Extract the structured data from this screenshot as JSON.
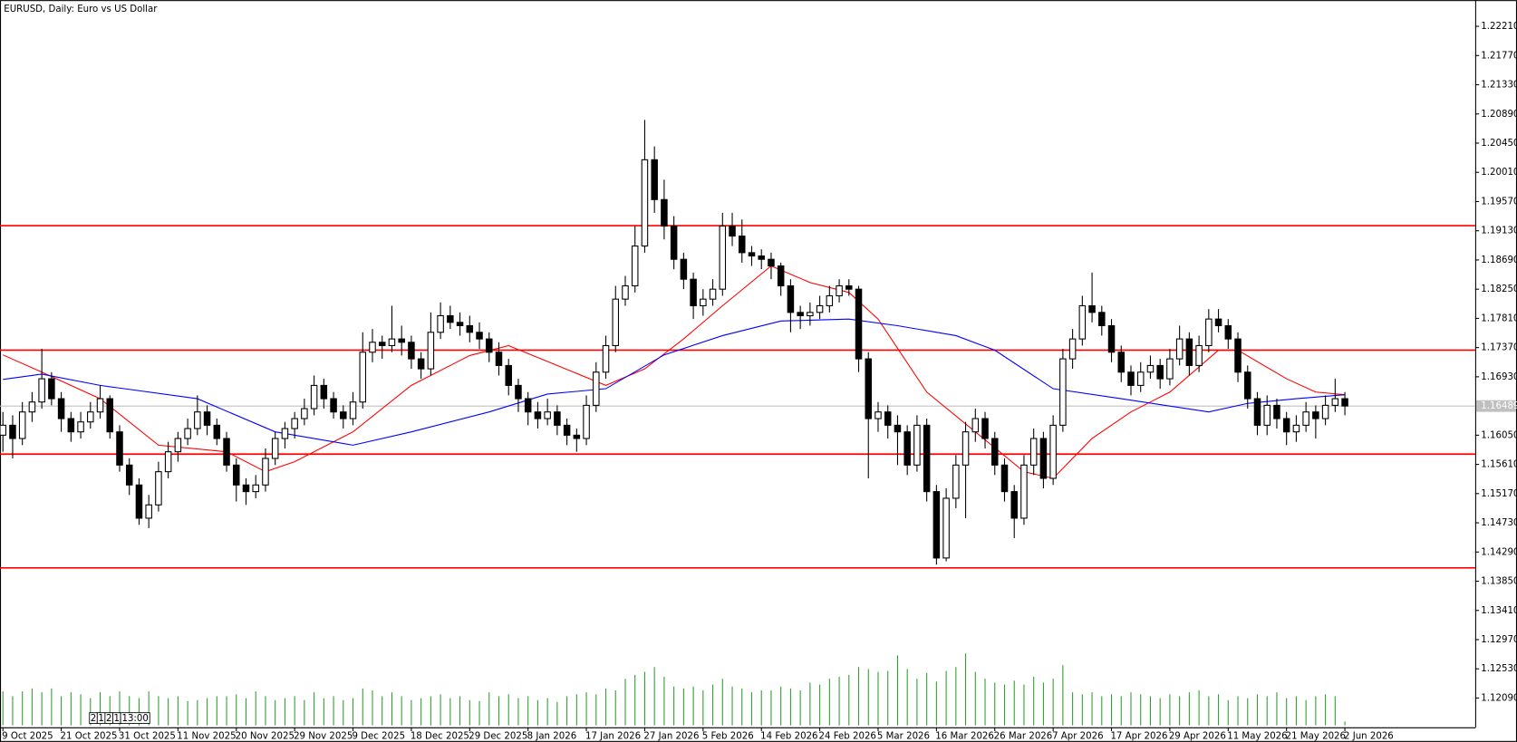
{
  "chart_data": {
    "type": "candlestick",
    "title": "EURUSD, Daily:  Euro vs US Dollar",
    "ohlc": [
      [
        1.1605,
        1.164,
        1.158,
        1.162
      ],
      [
        1.162,
        1.1635,
        1.157,
        1.16
      ],
      [
        1.16,
        1.1655,
        1.159,
        1.164
      ],
      [
        1.164,
        1.167,
        1.1625,
        1.1655
      ],
      [
        1.1655,
        1.1735,
        1.1645,
        1.169
      ],
      [
        1.169,
        1.17,
        1.165,
        1.166
      ],
      [
        1.166,
        1.167,
        1.161,
        1.163
      ],
      [
        1.163,
        1.164,
        1.1595,
        1.161
      ],
      [
        1.161,
        1.164,
        1.16,
        1.1625
      ],
      [
        1.1625,
        1.1655,
        1.1615,
        1.164
      ],
      [
        1.164,
        1.168,
        1.163,
        1.166
      ],
      [
        1.166,
        1.1665,
        1.16,
        1.161
      ],
      [
        1.161,
        1.162,
        1.155,
        1.156
      ],
      [
        1.156,
        1.157,
        1.1515,
        1.153
      ],
      [
        1.153,
        1.154,
        1.147,
        1.148
      ],
      [
        1.148,
        1.1515,
        1.1465,
        1.15
      ],
      [
        1.15,
        1.1565,
        1.149,
        1.155
      ],
      [
        1.155,
        1.1595,
        1.154,
        1.158
      ],
      [
        1.158,
        1.161,
        1.1565,
        1.16
      ],
      [
        1.16,
        1.163,
        1.159,
        1.1615
      ],
      [
        1.1615,
        1.1665,
        1.1605,
        1.164
      ],
      [
        1.164,
        1.165,
        1.1605,
        1.162
      ],
      [
        1.162,
        1.163,
        1.159,
        1.16
      ],
      [
        1.16,
        1.161,
        1.155,
        1.156
      ],
      [
        1.156,
        1.157,
        1.1505,
        1.153
      ],
      [
        1.153,
        1.154,
        1.15,
        1.152
      ],
      [
        1.152,
        1.1545,
        1.151,
        1.153
      ],
      [
        1.153,
        1.1585,
        1.152,
        1.157
      ],
      [
        1.157,
        1.161,
        1.156,
        1.16
      ],
      [
        1.16,
        1.1625,
        1.1585,
        1.1615
      ],
      [
        1.1615,
        1.164,
        1.16,
        1.163
      ],
      [
        1.163,
        1.166,
        1.162,
        1.1645
      ],
      [
        1.1645,
        1.1695,
        1.1635,
        1.168
      ],
      [
        1.168,
        1.169,
        1.1645,
        1.166
      ],
      [
        1.166,
        1.167,
        1.163,
        1.164
      ],
      [
        1.164,
        1.165,
        1.1615,
        1.163
      ],
      [
        1.163,
        1.167,
        1.162,
        1.1655
      ],
      [
        1.1655,
        1.176,
        1.1645,
        1.173
      ],
      [
        1.173,
        1.1765,
        1.1715,
        1.1745
      ],
      [
        1.1745,
        1.1755,
        1.172,
        1.174
      ],
      [
        1.174,
        1.18,
        1.173,
        1.175
      ],
      [
        1.175,
        1.177,
        1.1725,
        1.1745
      ],
      [
        1.1745,
        1.1755,
        1.1705,
        1.172
      ],
      [
        1.172,
        1.173,
        1.169,
        1.1705
      ],
      [
        1.1705,
        1.179,
        1.1695,
        1.176
      ],
      [
        1.176,
        1.1805,
        1.175,
        1.1785
      ],
      [
        1.1785,
        1.18,
        1.1765,
        1.1775
      ],
      [
        1.1775,
        1.179,
        1.1755,
        1.177
      ],
      [
        1.177,
        1.1785,
        1.1745,
        1.176
      ],
      [
        1.176,
        1.1775,
        1.1735,
        1.175
      ],
      [
        1.175,
        1.176,
        1.1715,
        1.173
      ],
      [
        1.173,
        1.1745,
        1.1695,
        1.171
      ],
      [
        1.171,
        1.172,
        1.1665,
        1.168
      ],
      [
        1.168,
        1.169,
        1.164,
        1.166
      ],
      [
        1.166,
        1.167,
        1.162,
        1.164
      ],
      [
        1.164,
        1.1655,
        1.1615,
        1.163
      ],
      [
        1.163,
        1.166,
        1.162,
        1.164
      ],
      [
        1.164,
        1.165,
        1.1605,
        1.162
      ],
      [
        1.162,
        1.163,
        1.159,
        1.1605
      ],
      [
        1.1605,
        1.1615,
        1.158,
        1.16
      ],
      [
        1.16,
        1.1665,
        1.159,
        1.165
      ],
      [
        1.165,
        1.1715,
        1.164,
        1.17
      ],
      [
        1.17,
        1.1755,
        1.169,
        1.174
      ],
      [
        1.174,
        1.183,
        1.173,
        1.181
      ],
      [
        1.181,
        1.1845,
        1.18,
        1.183
      ],
      [
        1.183,
        1.192,
        1.182,
        1.189
      ],
      [
        1.189,
        1.208,
        1.188,
        1.202
      ],
      [
        1.202,
        1.204,
        1.194,
        1.196
      ],
      [
        1.196,
        1.199,
        1.19,
        1.192
      ],
      [
        1.192,
        1.1935,
        1.1855,
        1.187
      ],
      [
        1.187,
        1.188,
        1.1825,
        1.184
      ],
      [
        1.184,
        1.185,
        1.178,
        1.18
      ],
      [
        1.18,
        1.1825,
        1.1785,
        1.181
      ],
      [
        1.181,
        1.184,
        1.18,
        1.1825
      ],
      [
        1.1825,
        1.194,
        1.1815,
        1.192
      ],
      [
        1.192,
        1.194,
        1.189,
        1.1905
      ],
      [
        1.1905,
        1.193,
        1.1865,
        1.188
      ],
      [
        1.188,
        1.189,
        1.186,
        1.1875
      ],
      [
        1.1875,
        1.1885,
        1.1855,
        1.187
      ],
      [
        1.187,
        1.188,
        1.184,
        1.186
      ],
      [
        1.186,
        1.1865,
        1.1815,
        1.183
      ],
      [
        1.183,
        1.184,
        1.176,
        1.179
      ],
      [
        1.179,
        1.18,
        1.1765,
        1.1785
      ],
      [
        1.1785,
        1.1805,
        1.177,
        1.179
      ],
      [
        1.179,
        1.1815,
        1.178,
        1.18
      ],
      [
        1.18,
        1.183,
        1.179,
        1.1815
      ],
      [
        1.1815,
        1.184,
        1.1805,
        1.183
      ],
      [
        1.183,
        1.184,
        1.1815,
        1.1825
      ],
      [
        1.1825,
        1.183,
        1.17,
        1.172
      ],
      [
        1.172,
        1.173,
        1.154,
        1.163
      ],
      [
        1.163,
        1.1655,
        1.161,
        1.164
      ],
      [
        1.164,
        1.165,
        1.16,
        1.162
      ],
      [
        1.162,
        1.1635,
        1.156,
        1.161
      ],
      [
        1.161,
        1.162,
        1.1545,
        1.156
      ],
      [
        1.156,
        1.1635,
        1.155,
        1.162
      ],
      [
        1.162,
        1.163,
        1.1505,
        1.152
      ],
      [
        1.152,
        1.153,
        1.141,
        1.142
      ],
      [
        1.142,
        1.1525,
        1.1415,
        1.151
      ],
      [
        1.151,
        1.1575,
        1.1495,
        1.156
      ],
      [
        1.156,
        1.1625,
        1.148,
        1.161
      ],
      [
        1.161,
        1.1645,
        1.1595,
        1.163
      ],
      [
        1.163,
        1.164,
        1.1585,
        1.16
      ],
      [
        1.16,
        1.161,
        1.1545,
        1.156
      ],
      [
        1.156,
        1.157,
        1.1505,
        1.152
      ],
      [
        1.152,
        1.153,
        1.145,
        1.148
      ],
      [
        1.148,
        1.1575,
        1.147,
        1.156
      ],
      [
        1.156,
        1.1615,
        1.1545,
        1.16
      ],
      [
        1.16,
        1.161,
        1.1525,
        1.154
      ],
      [
        1.154,
        1.1635,
        1.153,
        1.162
      ],
      [
        1.162,
        1.1735,
        1.161,
        1.172
      ],
      [
        1.172,
        1.1765,
        1.1705,
        1.175
      ],
      [
        1.175,
        1.1815,
        1.174,
        1.18
      ],
      [
        1.18,
        1.185,
        1.1775,
        1.179
      ],
      [
        1.179,
        1.18,
        1.1755,
        1.177
      ],
      [
        1.177,
        1.178,
        1.1715,
        1.173
      ],
      [
        1.173,
        1.174,
        1.1685,
        1.17
      ],
      [
        1.17,
        1.171,
        1.1665,
        1.168
      ],
      [
        1.168,
        1.1715,
        1.167,
        1.17
      ],
      [
        1.17,
        1.1725,
        1.169,
        1.171
      ],
      [
        1.171,
        1.172,
        1.1675,
        1.169
      ],
      [
        1.169,
        1.1735,
        1.168,
        1.172
      ],
      [
        1.172,
        1.177,
        1.171,
        1.175
      ],
      [
        1.175,
        1.176,
        1.1695,
        1.171
      ],
      [
        1.171,
        1.1755,
        1.17,
        1.174
      ],
      [
        1.174,
        1.1795,
        1.173,
        1.178
      ],
      [
        1.178,
        1.1795,
        1.176,
        1.177
      ],
      [
        1.177,
        1.178,
        1.1735,
        1.175
      ],
      [
        1.175,
        1.176,
        1.1685,
        1.17
      ],
      [
        1.17,
        1.171,
        1.1645,
        1.166
      ],
      [
        1.166,
        1.167,
        1.1605,
        1.162
      ],
      [
        1.162,
        1.1665,
        1.1605,
        1.165
      ],
      [
        1.165,
        1.166,
        1.1615,
        1.163
      ],
      [
        1.163,
        1.164,
        1.159,
        1.161
      ],
      [
        1.161,
        1.1635,
        1.1595,
        1.162
      ],
      [
        1.162,
        1.1655,
        1.161,
        1.164
      ],
      [
        1.164,
        1.165,
        1.16,
        1.163
      ],
      [
        1.163,
        1.1665,
        1.162,
        1.165
      ],
      [
        1.165,
        1.169,
        1.164,
        1.166
      ],
      [
        1.166,
        1.167,
        1.1635,
        1.1649
      ]
    ],
    "volume": [
      35,
      30,
      35,
      38,
      34,
      38,
      30,
      34,
      32,
      28,
      34,
      30,
      35,
      30,
      28,
      35,
      30,
      28,
      30,
      25,
      26,
      28,
      30,
      30,
      32,
      28,
      35,
      30,
      26,
      28,
      30,
      26,
      34,
      28,
      30,
      26,
      28,
      38,
      36,
      30,
      34,
      30,
      26,
      28,
      30,
      32,
      28,
      30,
      26,
      25,
      34,
      30,
      32,
      28,
      30,
      26,
      28,
      24,
      30,
      32,
      34,
      32,
      38,
      36,
      48,
      52,
      55,
      60,
      50,
      40,
      38,
      40,
      36,
      42,
      48,
      40,
      38,
      34,
      36,
      36,
      40,
      38,
      36,
      44,
      42,
      48,
      50,
      52,
      60,
      58,
      55,
      56,
      72,
      58,
      48,
      54,
      45,
      56,
      60,
      74,
      55,
      48,
      44,
      42,
      46,
      42,
      50,
      44,
      48,
      62,
      34,
      32,
      34,
      30,
      32,
      30,
      34,
      32,
      30,
      28,
      32,
      30,
      34,
      36,
      30,
      32,
      26,
      30,
      28,
      32,
      30,
      34,
      28,
      30,
      26,
      30,
      32,
      30,
      4
    ],
    "volume_color": "#2ca02c",
    "xlim": [
      -0.3,
      151.4
    ],
    "xticks": [
      {
        "value": 0,
        "label": "9 Oct 2025"
      },
      {
        "value": 6,
        "label": "21 Oct 2025"
      },
      {
        "value": 12,
        "label": "31 Oct 2025"
      },
      {
        "value": 18,
        "label": "11 Nov 2025"
      },
      {
        "value": 24,
        "label": "20 Nov 2025"
      },
      {
        "value": 30,
        "label": "29 Nov 2025"
      },
      {
        "value": 36,
        "label": "9 Dec 2025"
      },
      {
        "value": 42,
        "label": "18 Dec 2025"
      },
      {
        "value": 48,
        "label": "29 Dec 2025"
      },
      {
        "value": 54,
        "label": "8 Jan 2026"
      },
      {
        "value": 60,
        "label": "17 Jan 2026"
      },
      {
        "value": 66,
        "label": "27 Jan 2026"
      },
      {
        "value": 72,
        "label": "5 Feb 2026"
      },
      {
        "value": 78,
        "label": "14 Feb 2026"
      },
      {
        "value": 84,
        "label": "24 Feb 2026"
      },
      {
        "value": 90,
        "label": "5 Mar 2026"
      },
      {
        "value": 96,
        "label": "16 Mar 2026"
      },
      {
        "value": 102,
        "label": "26 Mar 2026"
      },
      {
        "value": 108,
        "label": "7 Apr 2026"
      },
      {
        "value": 114,
        "label": "17 Apr 2026"
      },
      {
        "value": 120,
        "label": "29 Apr 2026"
      },
      {
        "value": 126,
        "label": "11 May 2026"
      },
      {
        "value": 132,
        "label": "21 May 2026"
      },
      {
        "value": 138,
        "label": "2 Jun 2026"
      }
    ],
    "ylim": [
      1.11649,
      1.22605
    ],
    "yticks": [
      {
        "value": 1.2221,
        "label": "1.22210"
      },
      {
        "value": 1.2177,
        "label": "1.21770"
      },
      {
        "value": 1.2133,
        "label": "1.21330"
      },
      {
        "value": 1.2089,
        "label": "1.20890"
      },
      {
        "value": 1.2045,
        "label": "1.20450"
      },
      {
        "value": 1.2001,
        "label": "1.20010"
      },
      {
        "value": 1.1957,
        "label": "1.19570"
      },
      {
        "value": 1.1913,
        "label": "1.19130"
      },
      {
        "value": 1.1869,
        "label": "1.18690"
      },
      {
        "value": 1.1825,
        "label": "1.18250"
      },
      {
        "value": 1.1781,
        "label": "1.17810"
      },
      {
        "value": 1.1737,
        "label": "1.17370"
      },
      {
        "value": 1.1693,
        "label": "1.16930"
      },
      {
        "value": 1.1605,
        "label": "1.16050"
      },
      {
        "value": 1.1561,
        "label": "1.15610"
      },
      {
        "value": 1.1517,
        "label": "1.15170"
      },
      {
        "value": 1.1473,
        "label": "1.14730"
      },
      {
        "value": 1.1429,
        "label": "1.14290"
      },
      {
        "value": 1.1385,
        "label": "1.13850"
      },
      {
        "value": 1.1341,
        "label": "1.13410"
      },
      {
        "value": 1.1297,
        "label": "1.12970"
      },
      {
        "value": 1.1253,
        "label": "1.12530"
      },
      {
        "value": 1.1209,
        "label": "1.12090"
      }
    ],
    "current_price": 1.16489,
    "hlines": {
      "color": "#ff0000",
      "values": [
        1.19207,
        1.17332,
        1.15765,
        1.14051
      ]
    },
    "lines": [
      {
        "color": "#ff0000",
        "x": [
          0,
          4,
          10,
          16,
          23,
          27,
          30,
          36,
          42,
          48,
          52,
          57,
          62,
          66,
          70,
          74,
          79,
          83,
          87,
          90,
          95,
          100,
          105,
          108,
          112,
          116,
          120,
          125,
          127,
          132,
          135,
          138
        ],
        "values": [
          1.1726,
          1.17,
          1.166,
          1.159,
          1.158,
          1.155,
          1.1565,
          1.161,
          1.168,
          1.1725,
          1.174,
          1.171,
          1.168,
          1.1705,
          1.175,
          1.18,
          1.186,
          1.1835,
          1.182,
          1.178,
          1.167,
          1.161,
          1.155,
          1.154,
          1.16,
          1.164,
          1.167,
          1.1733,
          1.1733,
          1.169,
          1.167,
          1.1666
        ]
      },
      {
        "color": "#0000ff",
        "x": [
          0,
          4,
          10,
          20,
          28,
          36,
          42,
          50,
          56,
          62,
          68,
          74,
          80,
          87,
          92,
          98,
          102,
          108,
          115,
          124,
          128,
          133,
          138
        ],
        "values": [
          1.1689,
          1.1697,
          1.168,
          1.166,
          1.161,
          1.159,
          1.161,
          1.164,
          1.1667,
          1.1675,
          1.1726,
          1.1755,
          1.1777,
          1.178,
          1.177,
          1.1755,
          1.1733,
          1.1675,
          1.166,
          1.164,
          1.1653,
          1.166,
          1.1666
        ]
      }
    ],
    "overlay_labels": [
      "2",
      "1",
      "2",
      "1",
      "13:00"
    ]
  }
}
